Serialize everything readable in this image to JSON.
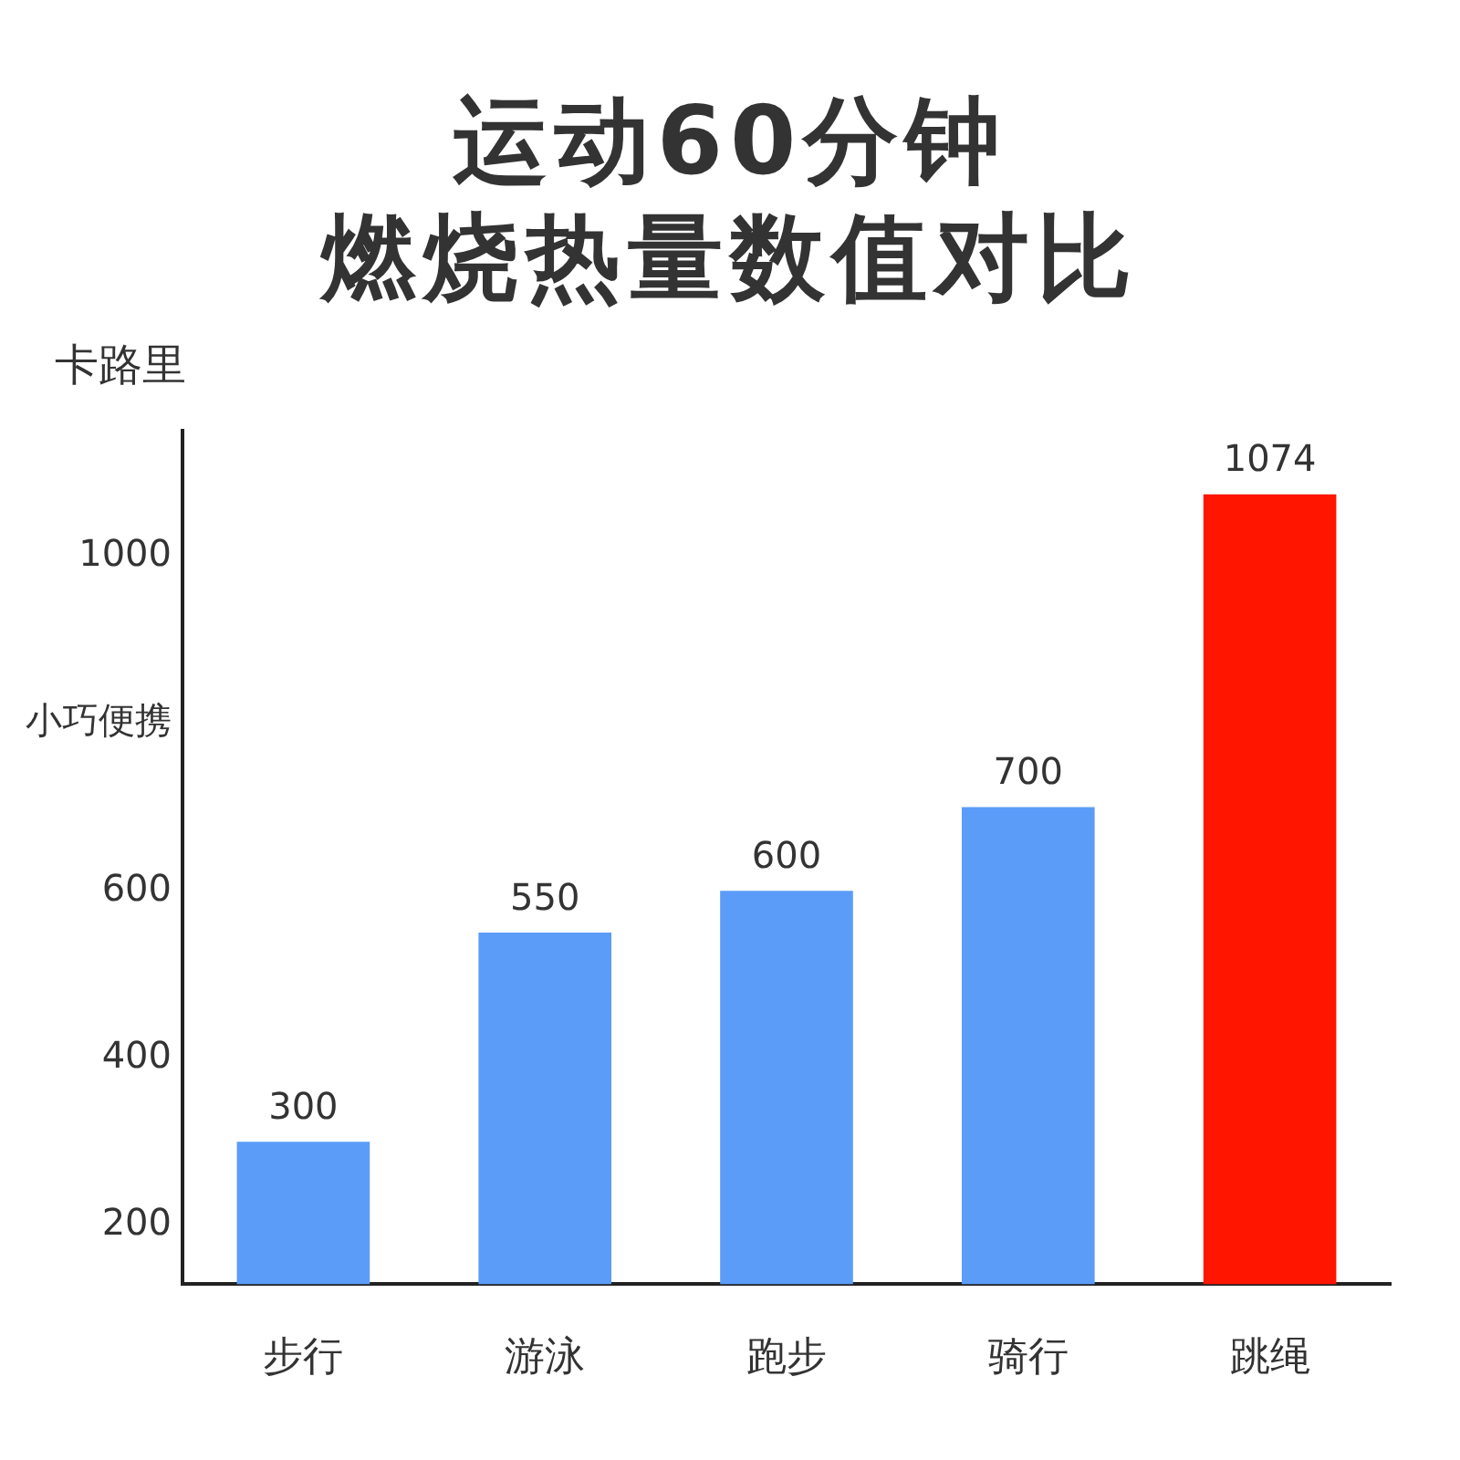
{
  "chart_data": {
    "type": "bar",
    "title": "运动60分钟",
    "subtitle": "燃烧热量数值对比",
    "ylabel": "卡路里",
    "categories": [
      "步行",
      "游泳",
      "跑步",
      "骑行",
      "跳绳"
    ],
    "values": [
      300,
      550,
      600,
      700,
      1074
    ],
    "colors": [
      "#5b9cf8",
      "#5b9cf8",
      "#5b9cf8",
      "#5b9cf8",
      "#ff1500"
    ],
    "ylim": [
      130,
      1150
    ],
    "yticks": [
      200,
      400,
      600,
      {
        "value": 800,
        "label": "小巧便携"
      },
      1000
    ],
    "data_labels": true,
    "grid": false,
    "legend": false
  }
}
